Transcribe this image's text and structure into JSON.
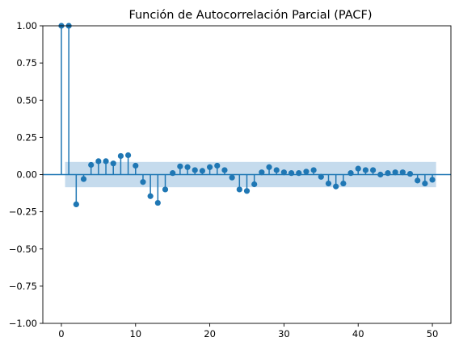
{
  "chart_data": {
    "type": "stem",
    "title": "Función de Autocorrelación Parcial (PACF)",
    "xlabel": "",
    "ylabel": "",
    "xlim": [
      -2.5,
      52.5
    ],
    "ylim": [
      -1.0,
      1.0
    ],
    "x_ticks": [
      0,
      10,
      20,
      30,
      40,
      50
    ],
    "x_tick_labels": [
      "0",
      "10",
      "20",
      "30",
      "40",
      "50"
    ],
    "y_ticks": [
      -1.0,
      -0.75,
      -0.5,
      -0.25,
      0.0,
      0.25,
      0.5,
      0.75,
      1.0
    ],
    "y_tick_labels": [
      "−1.00",
      "−0.75",
      "−0.50",
      "−0.25",
      "0.00",
      "0.25",
      "0.50",
      "0.75",
      "1.00"
    ],
    "grid": false,
    "confidence_band": {
      "x_start": 0.5,
      "x_end": 50.5,
      "lower": -0.085,
      "upper": 0.085
    },
    "lags": [
      0,
      1,
      2,
      3,
      4,
      5,
      6,
      7,
      8,
      9,
      10,
      11,
      12,
      13,
      14,
      15,
      16,
      17,
      18,
      19,
      20,
      21,
      22,
      23,
      24,
      25,
      26,
      27,
      28,
      29,
      30,
      31,
      32,
      33,
      34,
      35,
      36,
      37,
      38,
      39,
      40,
      41,
      42,
      43,
      44,
      45,
      46,
      47,
      48,
      49,
      50
    ],
    "values": [
      1.0,
      1.0,
      -0.2,
      -0.03,
      0.065,
      0.09,
      0.09,
      0.075,
      0.125,
      0.13,
      0.06,
      -0.05,
      -0.145,
      -0.19,
      -0.1,
      0.01,
      0.055,
      0.05,
      0.03,
      0.025,
      0.05,
      0.06,
      0.03,
      -0.02,
      -0.1,
      -0.11,
      -0.065,
      0.015,
      0.05,
      0.03,
      0.015,
      0.01,
      0.01,
      0.02,
      0.03,
      -0.015,
      -0.06,
      -0.08,
      -0.06,
      0.01,
      0.04,
      0.03,
      0.03,
      0.0,
      0.01,
      0.015,
      0.015,
      0.005,
      -0.04,
      -0.06,
      -0.035
    ],
    "colors": {
      "stem": "#1f77b4",
      "band": "#c5dbed",
      "baseline": "#1f77b4"
    }
  }
}
